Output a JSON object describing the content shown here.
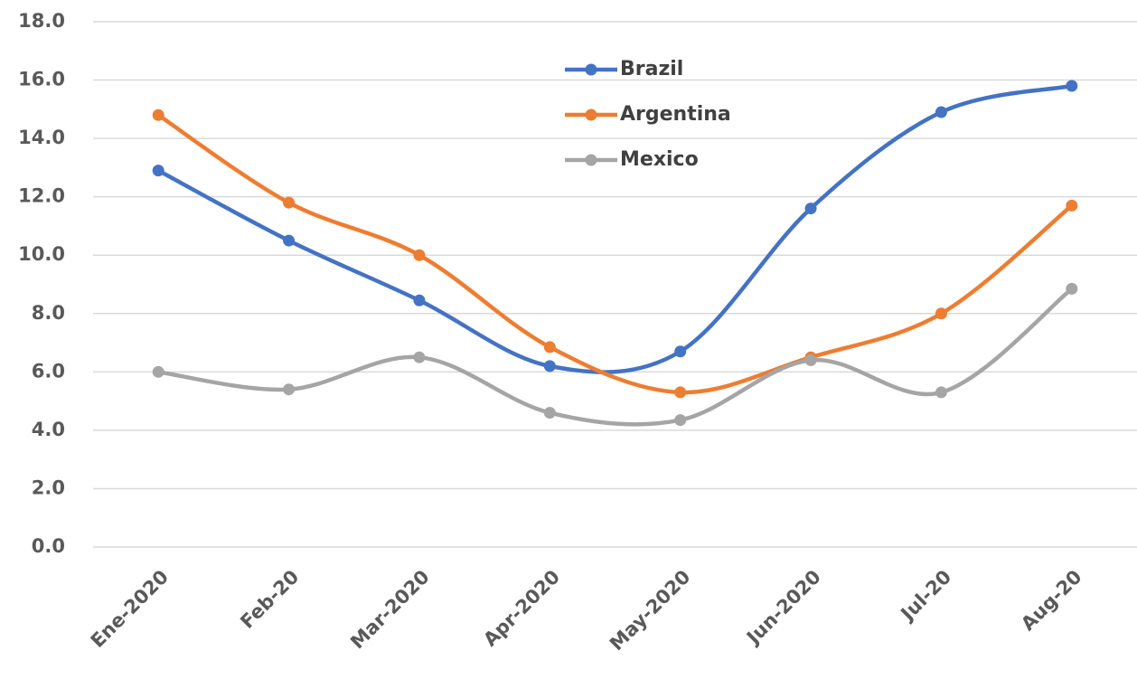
{
  "chart_data": {
    "type": "line",
    "smooth": true,
    "grid": true,
    "legend": "top",
    "categories": [
      "Ene-2020",
      "Feb-20",
      "Mar-2020",
      "Apr-2020",
      "May-2020",
      "Jun-2020",
      "Jul-20",
      "Aug-20"
    ],
    "series": [
      {
        "name": "Brazil",
        "color": "#4472c4",
        "values": [
          12.9,
          10.5,
          8.45,
          6.2,
          6.7,
          11.6,
          14.9,
          15.8
        ]
      },
      {
        "name": "Argentina",
        "color": "#ed7d31",
        "values": [
          14.8,
          11.8,
          10.0,
          6.85,
          5.3,
          6.5,
          8.0,
          11.7
        ]
      },
      {
        "name": "Mexico",
        "color": "#a5a5a5",
        "values": [
          6.0,
          5.4,
          6.5,
          4.6,
          4.35,
          6.4,
          5.3,
          8.85
        ]
      }
    ],
    "ylim": [
      0,
      18
    ],
    "yticks": [
      {
        "value": 0,
        "label": "0.0"
      },
      {
        "value": 2,
        "label": "2.0"
      },
      {
        "value": 4,
        "label": "4.0"
      },
      {
        "value": 6,
        "label": "6.0"
      },
      {
        "value": 8,
        "label": "8.0"
      },
      {
        "value": 10,
        "label": "10.0"
      },
      {
        "value": 12,
        "label": "12.0"
      },
      {
        "value": 14,
        "label": "14.0"
      },
      {
        "value": 16,
        "label": "16.0"
      },
      {
        "value": 18,
        "label": "18.0"
      }
    ]
  }
}
